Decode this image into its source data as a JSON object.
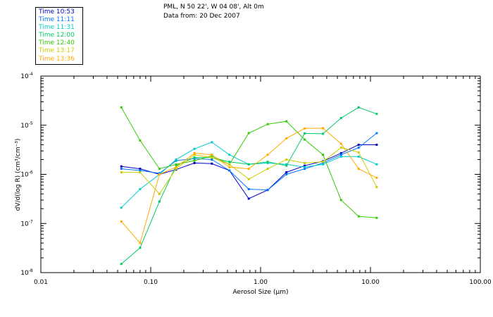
{
  "header": {
    "location": "PML, N 50 22', W 04 08', Alt 0m",
    "date_line": "Data from: 20 Dec 2007"
  },
  "chart_data": {
    "type": "line",
    "xscale": "log",
    "yscale": "log",
    "xlim": [
      0.01,
      100
    ],
    "ylim": [
      1e-08,
      0.0001
    ],
    "xlabel": "Aerosol Size (μm)",
    "ylabel": "dV/d(log R) (cm³/cm⁻³)",
    "x_tick_labels": [
      "0.01",
      "0.10",
      "1.00",
      "10.00",
      "100.00"
    ],
    "y_tick_labels": [
      {
        "base": "10",
        "exp": "-8"
      },
      {
        "base": "10",
        "exp": "-7"
      },
      {
        "base": "10",
        "exp": "-6"
      },
      {
        "base": "10",
        "exp": "-5"
      },
      {
        "base": "10",
        "exp": "-4"
      }
    ],
    "x": [
      0.054,
      0.08,
      0.12,
      0.17,
      0.25,
      0.36,
      0.52,
      0.78,
      1.16,
      1.72,
      2.52,
      3.7,
      5.4,
      7.8,
      11.4
    ],
    "series": [
      {
        "name": "Time 10:53",
        "color": "#0000cc",
        "values": [
          1.45e-06,
          1.3e-06,
          1e-06,
          1.25e-06,
          1.7e-06,
          1.65e-06,
          1.2e-06,
          3.2e-07,
          4.8e-07,
          1.1e-06,
          1.5e-06,
          1.85e-06,
          2.7e-06,
          4e-06,
          4e-06
        ]
      },
      {
        "name": "Time 11:11",
        "color": "#0077ff",
        "values": [
          1.3e-06,
          1.2e-06,
          1.05e-06,
          1.9e-06,
          2.1e-06,
          2e-06,
          1.2e-06,
          5e-07,
          4.8e-07,
          1e-06,
          1.3e-06,
          1.7e-06,
          2.5e-06,
          3.5e-06,
          6.9e-06
        ]
      },
      {
        "name": "Time 11:31",
        "color": "#00cccc",
        "values": [
          2.1e-07,
          5e-07,
          1e-06,
          2e-06,
          3.3e-06,
          4.5e-06,
          2.5e-06,
          1.6e-06,
          1.7e-06,
          1.6e-06,
          1.4e-06,
          1.6e-06,
          2.3e-06,
          2.3e-06,
          1.6e-06
        ]
      },
      {
        "name": "Time 12:00",
        "color": "#00cc66",
        "values": [
          1.5e-08,
          3.2e-08,
          2.8e-07,
          1.5e-06,
          2.2e-06,
          2.2e-06,
          1.8e-06,
          1.6e-06,
          1.8e-06,
          1.5e-06,
          6.8e-06,
          6.7e-06,
          1.4e-05,
          2.3e-05,
          1.7e-05
        ]
      },
      {
        "name": "Time 12:40",
        "color": "#33cc00",
        "values": [
          2.3e-05,
          4.9e-06,
          1.3e-06,
          1.6e-06,
          1.9e-06,
          2.4e-06,
          1.6e-06,
          6.9e-06,
          1.05e-05,
          1.2e-05,
          5.1e-06,
          2.5e-06,
          3e-07,
          1.4e-07,
          1.3e-07
        ]
      },
      {
        "name": "Time 13:17",
        "color": "#cccc00",
        "values": [
          1.1e-06,
          1.1e-06,
          4e-07,
          1.3e-06,
          2.5e-06,
          2.2e-06,
          1.6e-06,
          8e-07,
          1.3e-06,
          2e-06,
          1.7e-06,
          1.8e-06,
          3.5e-06,
          2.8e-06,
          5.5e-07
        ]
      },
      {
        "name": "Time 13:36",
        "color": "#ffaa00",
        "values": [
          1.1e-07,
          4e-08,
          1e-06,
          1.4e-06,
          2.7e-06,
          2.5e-06,
          1.4e-06,
          1.3e-06,
          2.5e-06,
          5.4e-06,
          8.6e-06,
          8.7e-06,
          4.2e-06,
          1.3e-06,
          8.5e-07
        ]
      }
    ]
  }
}
